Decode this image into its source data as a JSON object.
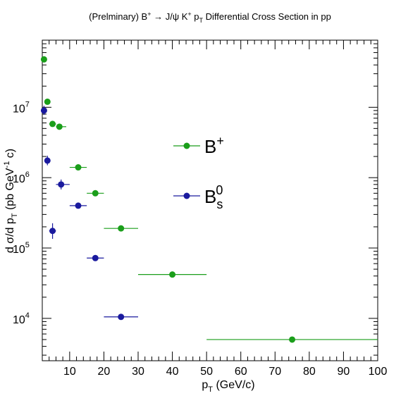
{
  "chart_data": {
    "type": "scatter",
    "title": "(Prelminary) B⁺ → J/ψ K⁺ p_T Differential Cross Section in pp",
    "xlabel": "p_T (GeV/c)",
    "ylabel": "d σ/d p_T (pb GeV⁻¹ c)",
    "xlim": [
      2,
      100
    ],
    "ylim": [
      2500,
      90000000
    ],
    "yscale": "log",
    "x_ticks": [
      10,
      20,
      30,
      40,
      50,
      60,
      70,
      80,
      90,
      100
    ],
    "x_tick_labels": [
      "10",
      "20",
      "30",
      "40",
      "50",
      "60",
      "70",
      "80",
      "90",
      "100"
    ],
    "y_ticks": [
      10000,
      100000,
      1000000,
      10000000
    ],
    "y_tick_labels": [
      {
        "base": "10",
        "exp": "4"
      },
      {
        "base": "10",
        "exp": "5"
      },
      {
        "base": "10",
        "exp": "6"
      },
      {
        "base": "10",
        "exp": "7"
      }
    ],
    "legend_position": "center",
    "series": [
      {
        "legend_base": "B",
        "legend_sup": "+",
        "legend_sub": "",
        "color": "#1a9e1a",
        "points": [
          {
            "x": 2.5,
            "xlo": 2,
            "xhi": 3,
            "y": 48000000
          },
          {
            "x": 3.5,
            "xlo": 3,
            "xhi": 4,
            "y": 12000000
          },
          {
            "x": 5.0,
            "xlo": 4,
            "xhi": 6,
            "y": 5800000
          },
          {
            "x": 7.0,
            "xlo": 6,
            "xhi": 9,
            "y": 5300000
          },
          {
            "x": 12.5,
            "xlo": 10,
            "xhi": 15,
            "y": 1400000
          },
          {
            "x": 17.5,
            "xlo": 15,
            "xhi": 20,
            "y": 600000
          },
          {
            "x": 25.0,
            "xlo": 20,
            "xhi": 30,
            "y": 190000
          },
          {
            "x": 40.0,
            "xlo": 30,
            "xhi": 50,
            "y": 42000
          },
          {
            "x": 75.0,
            "xlo": 50,
            "xhi": 100,
            "y": 5000
          }
        ]
      },
      {
        "legend_base": "B",
        "legend_sup": "0",
        "legend_sub": "s",
        "color": "#1a1a9e",
        "points": [
          {
            "x": 2.5,
            "xlo": 2,
            "xhi": 3,
            "y": 9000000,
            "ylo": 7800000,
            "yhi": 10500000
          },
          {
            "x": 3.5,
            "xlo": 3,
            "xhi": 4,
            "y": 1750000,
            "ylo": 1500000,
            "yhi": 2050000
          },
          {
            "x": 5.0,
            "xlo": 4,
            "xhi": 6,
            "y": 175000,
            "ylo": 135000,
            "yhi": 225000
          },
          {
            "x": 7.5,
            "xlo": 6,
            "xhi": 10,
            "y": 800000,
            "ylo": 680000,
            "yhi": 940000
          },
          {
            "x": 12.5,
            "xlo": 10,
            "xhi": 15,
            "y": 400000
          },
          {
            "x": 17.5,
            "xlo": 15,
            "xhi": 20,
            "y": 72000
          },
          {
            "x": 25.0,
            "xlo": 20,
            "xhi": 30,
            "y": 10500
          }
        ]
      }
    ]
  }
}
